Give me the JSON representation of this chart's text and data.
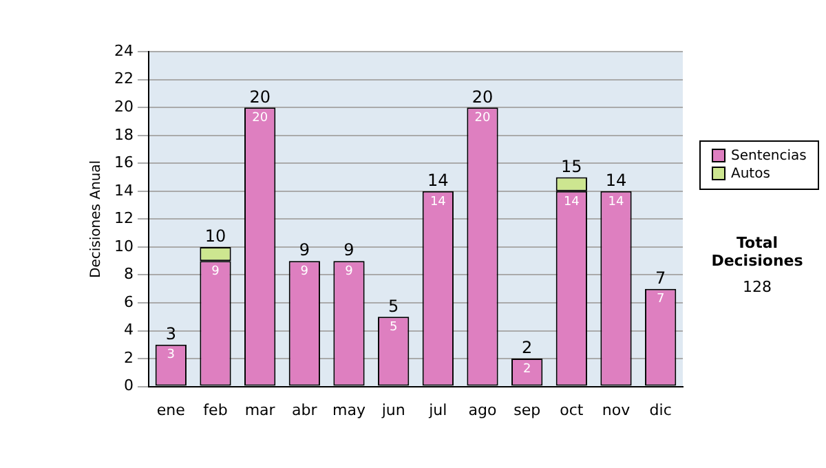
{
  "chart_data": {
    "type": "bar",
    "stacked": true,
    "ylabel": "Decisiones Anual",
    "categories": [
      "ene",
      "feb",
      "mar",
      "abr",
      "may",
      "jun",
      "jul",
      "ago",
      "sep",
      "oct",
      "nov",
      "dic"
    ],
    "series": [
      {
        "name": "Sentencias",
        "color": "#de7fc0",
        "values": [
          3,
          9,
          20,
          9,
          9,
          5,
          14,
          20,
          2,
          14,
          14,
          7
        ],
        "value_labels": [
          "3",
          "9",
          "20",
          "9",
          "9",
          "5",
          "14",
          "20",
          "2",
          "14",
          "14",
          "7"
        ]
      },
      {
        "name": "Autos",
        "color": "#cde690",
        "values": [
          0,
          1,
          0,
          0,
          0,
          0,
          0,
          0,
          0,
          1,
          0,
          0
        ]
      }
    ],
    "totals": [
      "3",
      "10",
      "20",
      "9",
      "9",
      "5",
      "14",
      "20",
      "2",
      "15",
      "14",
      "7"
    ],
    "ylim": [
      0,
      24
    ],
    "yticks": [
      0,
      2,
      4,
      6,
      8,
      10,
      12,
      14,
      16,
      18,
      20,
      22,
      24
    ],
    "grid": "y",
    "legend": "right",
    "annotations": [
      "Total Decisiones",
      "128"
    ]
  }
}
